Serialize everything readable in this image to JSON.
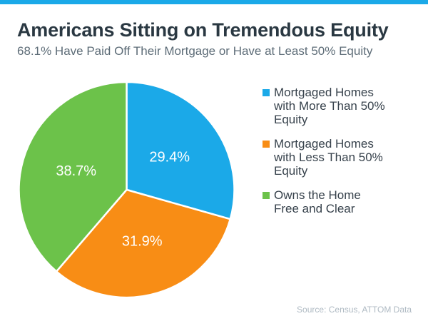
{
  "page": {
    "background_color": "#ffffff",
    "topbar_color": "#1BA9E8"
  },
  "header": {
    "title": "Americans Sitting on Tremendous Equity",
    "subtitle": "68.1% Have Paid Off Their Mortgage or Have at Least 50% Equity"
  },
  "chart_data": {
    "type": "pie",
    "title": "Americans Sitting on Tremendous Equity",
    "subtitle": "68.1% Have Paid Off Their Mortgage or Have at Least 50% Equity",
    "start_angle_deg": 0,
    "direction": "clockwise",
    "total": 100,
    "label_color": "#ffffff",
    "legend_position": "right",
    "slices": [
      {
        "label": "Mortgaged Homes with More Than 50% Equity",
        "value": 29.4,
        "display": "29.4%",
        "color": "#1BA9E8"
      },
      {
        "label": "Mortgaged Homes with Less Than 50% Equity",
        "value": 31.9,
        "display": "31.9%",
        "color": "#F88D15"
      },
      {
        "label": "Owns the Home Free and Clear",
        "value": 38.7,
        "display": "38.7%",
        "color": "#6CC24A"
      }
    ]
  },
  "legend": {
    "items": [
      {
        "label": "Mortgaged Homes\nwith More Than 50%\nEquity",
        "color": "#1BA9E8"
      },
      {
        "label": "Mortgaged Homes\nwith Less Than 50%\nEquity",
        "color": "#F88D15"
      },
      {
        "label": "Owns the Home\nFree and Clear",
        "color": "#6CC24A"
      }
    ]
  },
  "footer": {
    "source": "Source: Census, ATTOM Data"
  }
}
